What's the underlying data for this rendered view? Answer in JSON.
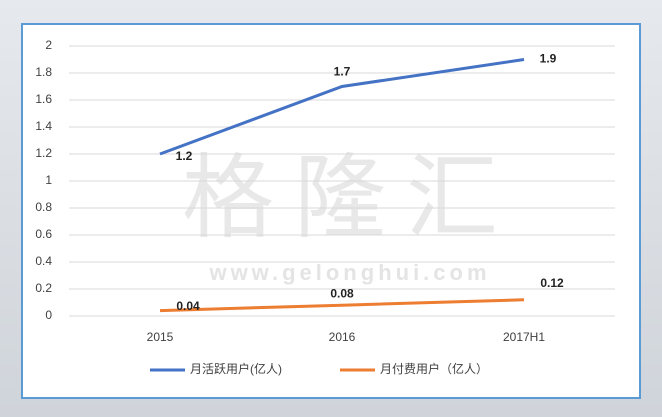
{
  "chart_data": {
    "type": "line",
    "categories": [
      "2015",
      "2016",
      "2017H1"
    ],
    "series": [
      {
        "name": "月活跃用户(亿人)",
        "color": "#4472c4",
        "values": [
          1.2,
          1.7,
          1.9
        ]
      },
      {
        "name": "月付费用户（亿人）",
        "color": "#ed7d31",
        "values": [
          0.04,
          0.08,
          0.12
        ]
      }
    ],
    "ylim": [
      0,
      2
    ],
    "yticks": [
      0,
      0.2,
      0.4,
      0.6,
      0.8,
      1,
      1.2,
      1.4,
      1.6,
      1.8,
      2
    ],
    "grid": true,
    "legend": "bottom",
    "watermark": {
      "text": "格隆汇",
      "url": "www.gelonghui.com"
    }
  }
}
